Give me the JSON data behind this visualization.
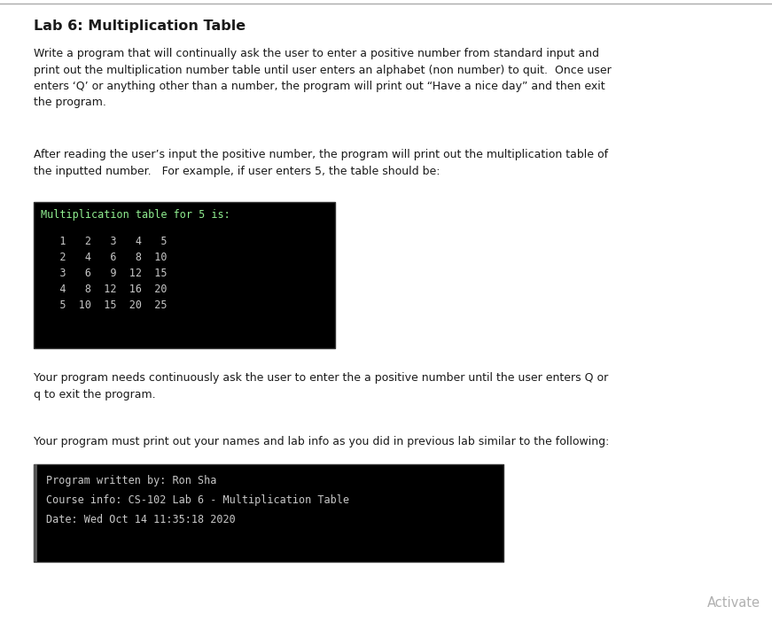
{
  "title": "Lab 6: Multiplication Table",
  "bg_color": "#ffffff",
  "text_color": "#1a1a1a",
  "title_fontsize": 11.5,
  "body_fontsize": 9.0,
  "mono_fontsize": 8.5,
  "paragraph1": "Write a program that will continually ask the user to enter a positive number from standard input and\nprint out the multiplication number table until user enters an alphabet (non number) to quit.  Once user\nenters ‘Q’ or anything other than a number, the program will print out “Have a nice day” and then exit\nthe program.",
  "paragraph2": "After reading the user’s input the positive number, the program will print out the multiplication table of\nthe inputted number.   For example, if user enters 5, the table should be:",
  "terminal_box1_header": "Multiplication table for 5 is:",
  "terminal_box1_data": [
    "   1   2   3   4   5",
    "   2   4   6   8  10",
    "   3   6   9  12  15",
    "   4   8  12  16  20",
    "   5  10  15  20  25"
  ],
  "paragraph3": "Your program needs continuously ask the user to enter the a positive number until the user enters Q or\nq to exit the program.",
  "paragraph4": "Your program must print out your names and lab info as you did in previous lab similar to the following:",
  "terminal_box2_lines": [
    "Program written by: Ron Sha",
    "Course info: CS-102 Lab 6 - Multiplication Table",
    "Date: Wed Oct 14 11:35:18 2020"
  ],
  "terminal_bg": "#000000",
  "terminal_fg": "#c8c8c8",
  "terminal_header_fg": "#90ee90",
  "activate_text": "Activate",
  "activate_color": "#b0b0b0",
  "border_color": "#aaaaaa",
  "left_bar_color": "#555555"
}
